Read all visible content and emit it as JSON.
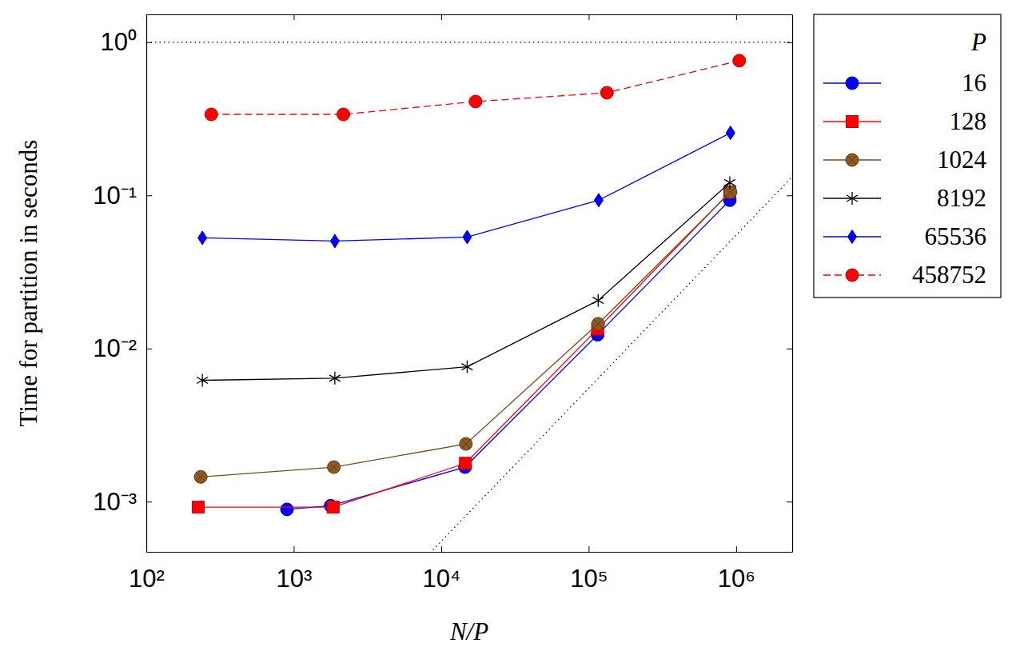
{
  "chart_data": {
    "type": "line",
    "x_label": "N/P",
    "y_label": "Time for partition in seconds",
    "log": true,
    "grid": false,
    "legend": "right",
    "legend_title": "P",
    "xlim": [
      100,
      2400000
    ],
    "ylim": [
      0.00047,
      1.52
    ],
    "xticks": [
      {
        "value": 100,
        "label": "10²"
      },
      {
        "value": 1000,
        "label": "10³"
      },
      {
        "value": 10000,
        "label": "10⁴"
      },
      {
        "value": 100000,
        "label": "10⁵"
      },
      {
        "value": 1000000,
        "label": "10⁶"
      }
    ],
    "yticks": [
      {
        "value": 0.001,
        "label": "10⁻³"
      },
      {
        "value": 0.01,
        "label": "10⁻²"
      },
      {
        "value": 0.1,
        "label": "10⁻¹"
      },
      {
        "value": 1,
        "label": "10⁰"
      }
    ],
    "reference_lines": [
      {
        "x": [
          100,
          2400000
        ],
        "values": [
          1,
          1
        ],
        "color": "#000000",
        "line_style": "dotted"
      },
      {
        "x": [
          8000,
          2400000
        ],
        "values": [
          0.00044,
          0.132
        ],
        "color": "#000000",
        "line_style": "dotted"
      }
    ],
    "series": [
      {
        "name": "16",
        "color": "#0000ff",
        "marker": "circle",
        "line_style": "solid",
        "x": [
          900,
          1780,
          14500,
          115000,
          906000
        ],
        "values": [
          0.00089,
          0.00094,
          0.00168,
          0.0123,
          0.093
        ]
      },
      {
        "name": "128",
        "color": "#ff0000",
        "marker": "square",
        "line_style": "solid",
        "x": [
          225,
          1850,
          14600,
          115000,
          906000
        ],
        "values": [
          0.00092,
          0.00092,
          0.00178,
          0.0134,
          0.105
        ]
      },
      {
        "name": "1024",
        "color": "#7a4a1c",
        "marker": "otimes",
        "line_style": "solid",
        "x": [
          234,
          1870,
          14700,
          116000,
          916000
        ],
        "values": [
          0.00145,
          0.00168,
          0.00238,
          0.0145,
          0.105
        ]
      },
      {
        "name": "8192",
        "color": "#000000",
        "marker": "asterisk",
        "line_style": "solid",
        "x": [
          240,
          1900,
          15000,
          116000,
          906000
        ],
        "values": [
          0.0062,
          0.0064,
          0.0076,
          0.0206,
          0.121
        ]
      },
      {
        "name": "65536",
        "color": "#0000ff",
        "marker": "diamond",
        "line_style": "solid",
        "x": [
          240,
          1900,
          15000,
          117000,
          916000
        ],
        "values": [
          0.0528,
          0.0503,
          0.0534,
          0.093,
          0.256
        ]
      },
      {
        "name": "458752",
        "color": "#ff0000",
        "marker": "circle",
        "line_style": "dashed",
        "x": [
          276,
          2170,
          17100,
          133000,
          1050000
        ],
        "values": [
          0.338,
          0.338,
          0.41,
          0.468,
          0.758
        ]
      }
    ]
  }
}
